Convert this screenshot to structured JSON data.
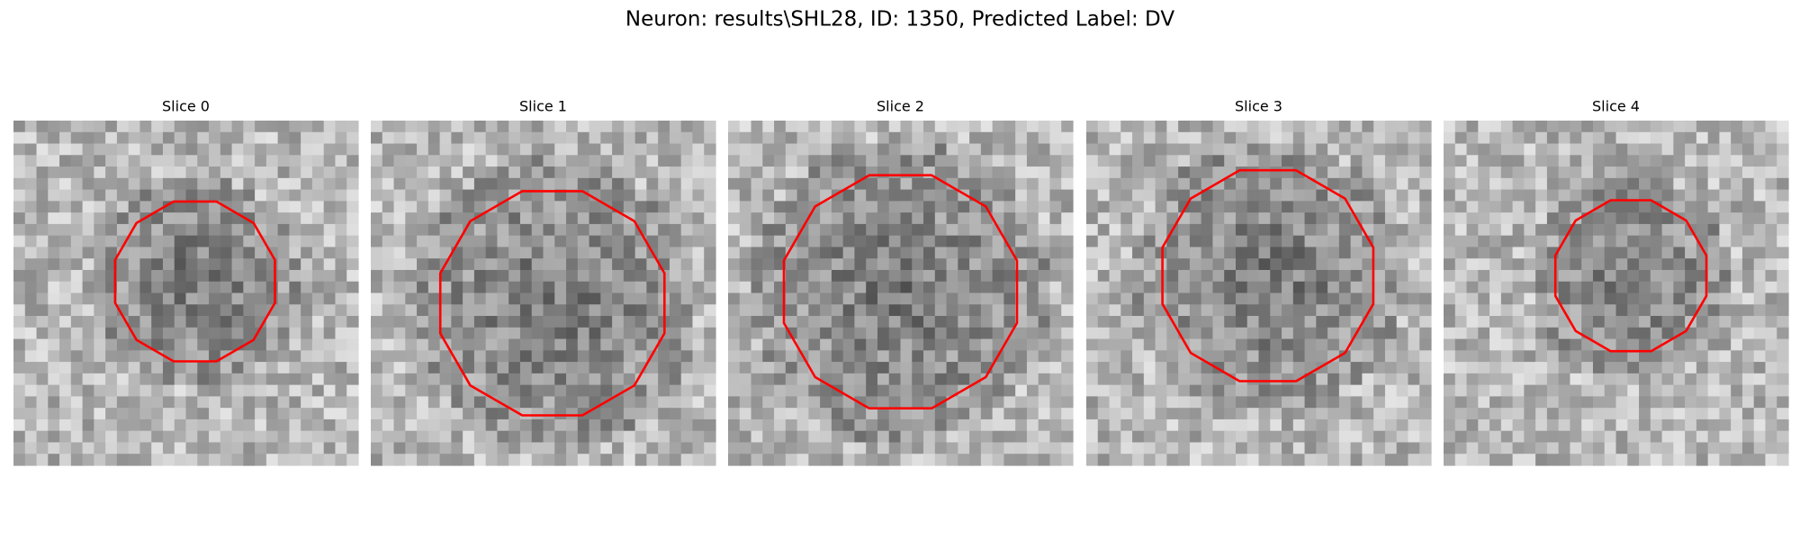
{
  "title": "Neuron: results\\SHL28, ID: 1350, Predicted Label: DV",
  "panels": [
    {
      "title": "Slice 0"
    },
    {
      "title": "Slice 1"
    },
    {
      "title": "Slice 2"
    },
    {
      "title": "Slice 3"
    },
    {
      "title": "Slice 4"
    }
  ]
}
